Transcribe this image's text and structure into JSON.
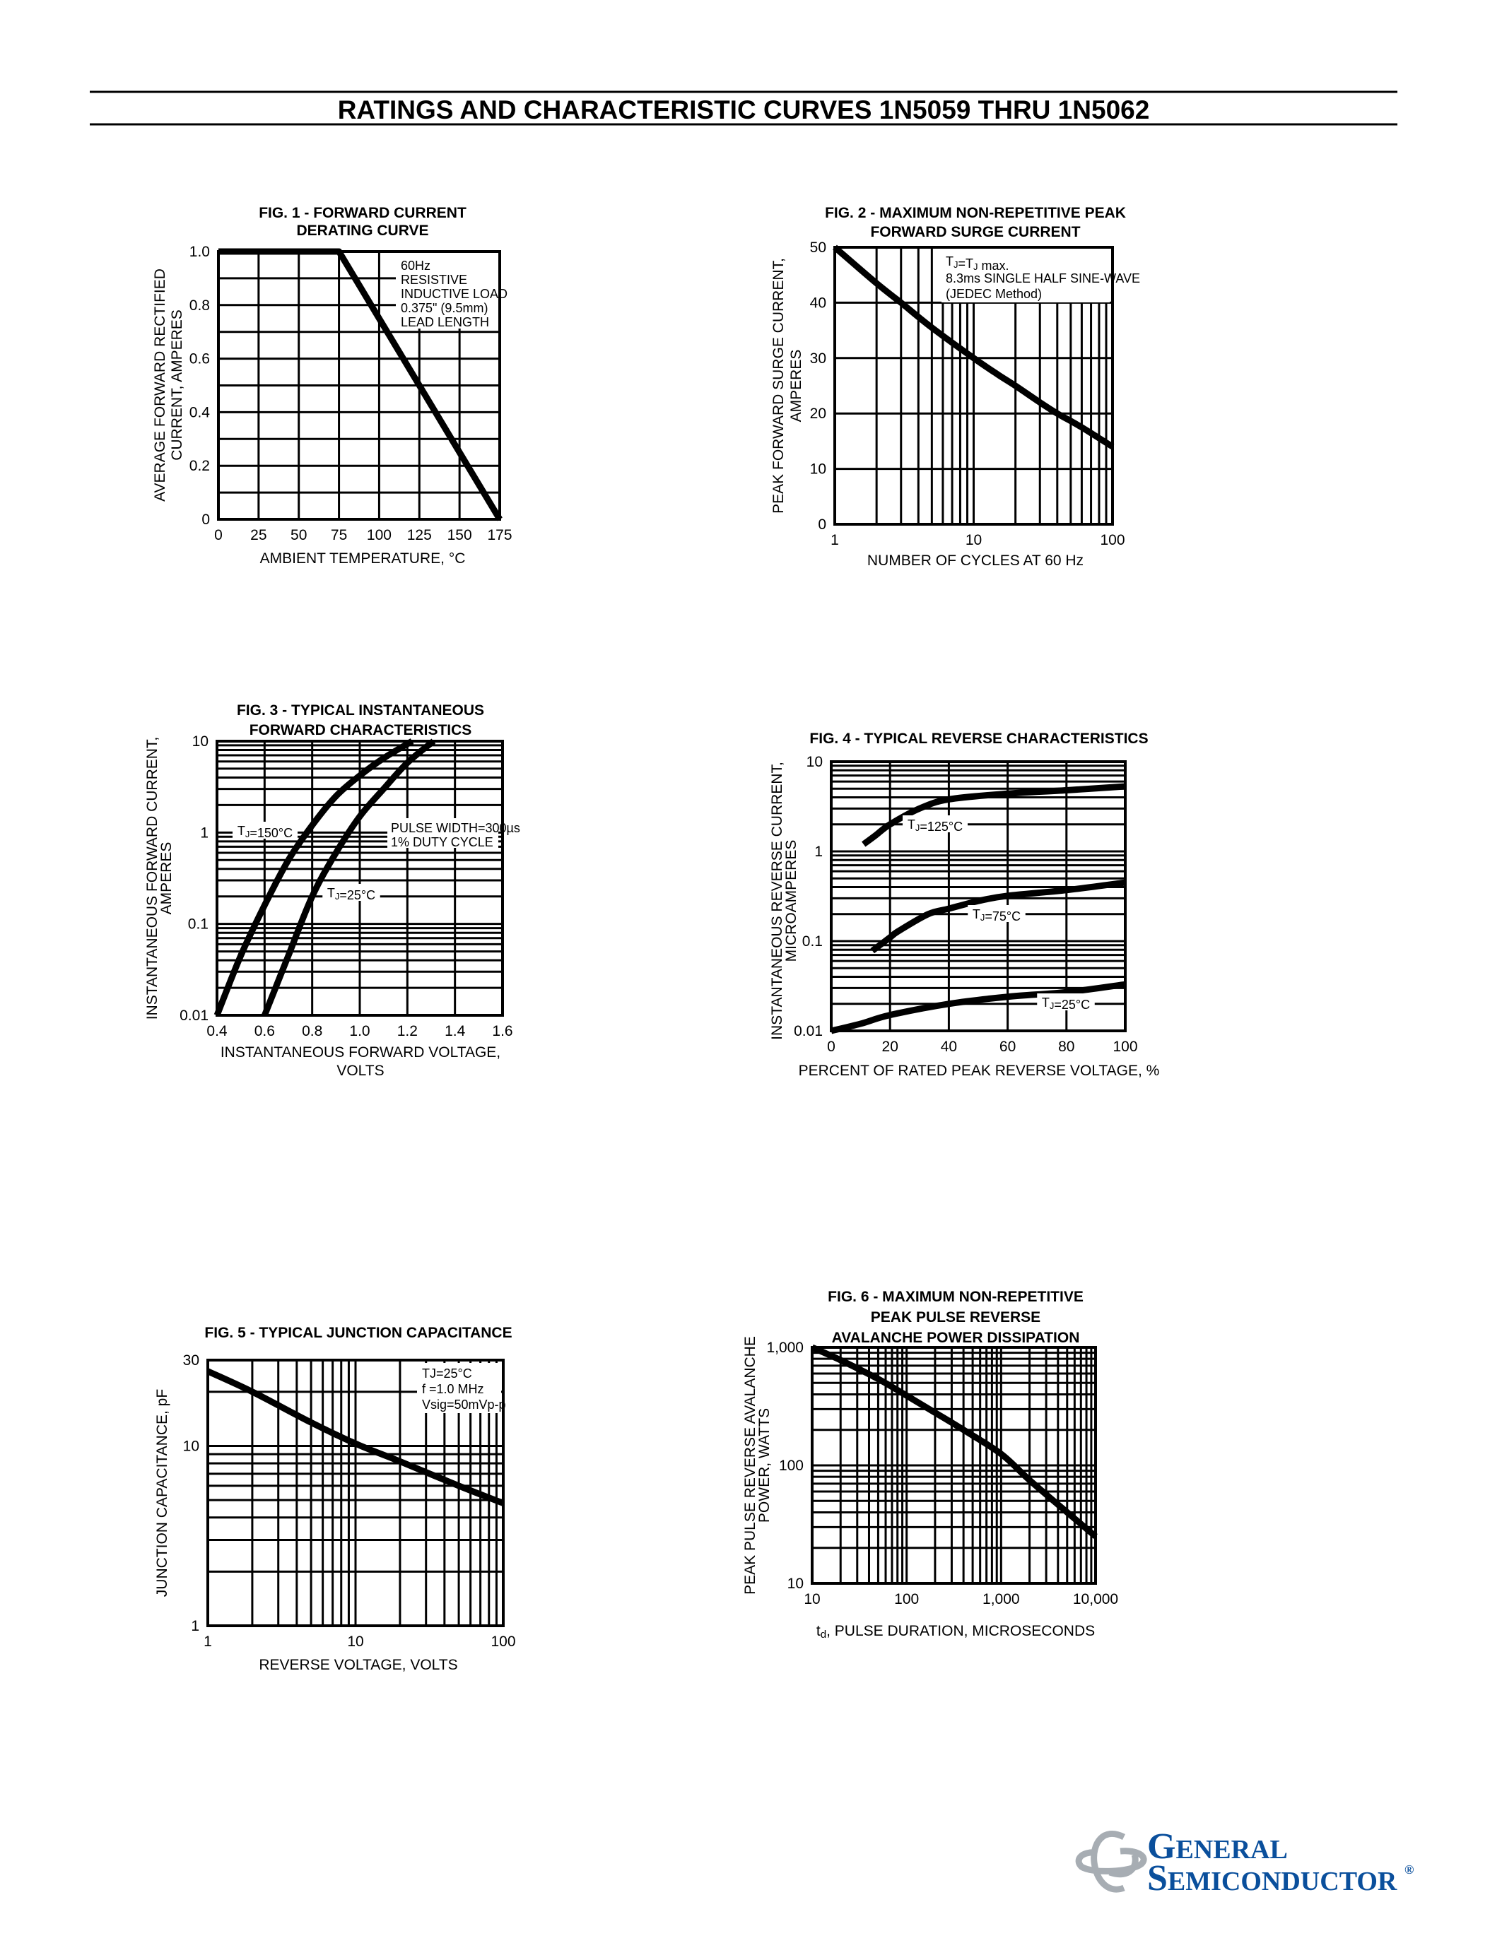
{
  "header": {
    "title": "RATINGS AND CHARACTERISTIC CURVES 1N5059 THRU 1N5062"
  },
  "logo": {
    "line1": "GENERAL",
    "line2": "SEMICONDUCTOR",
    "mark": "®",
    "emblem": "gs-emblem-icon",
    "color": "#0a4f9c",
    "emblem_color": "#a7adb3"
  },
  "chart_data": [
    {
      "type": "line",
      "title": [
        "FIG. 1 -  FORWARD CURRENT",
        "DERATING CURVE"
      ],
      "xlabel": [
        "AMBIENT TEMPERATURE, °C"
      ],
      "ylabel": [
        "AVERAGE FORWARD RECTIFIED",
        "CURRENT, AMPERES"
      ],
      "xscale": "linear",
      "yscale": "linear",
      "xlim": [
        0,
        175
      ],
      "ylim": [
        0,
        1.0
      ],
      "xticks": [
        0,
        25,
        50,
        75,
        100,
        125,
        150,
        175
      ],
      "xtick_labels": [
        "0",
        "25",
        "50",
        "75",
        "100",
        "125",
        "150",
        "175"
      ],
      "yticks": [
        0,
        0.2,
        0.4,
        0.6,
        0.8,
        1.0
      ],
      "ytick_labels": [
        "0",
        "0.2",
        "0.4",
        "0.6",
        "0.8",
        "1.0"
      ],
      "grid": true,
      "annotation": [
        "60Hz",
        "RESISTIVE",
        "INDUCTIVE LOAD",
        "0.375\" (9.5mm)",
        "LEAD LENGTH"
      ],
      "series": [
        {
          "points": [
            [
              0,
              1.0
            ],
            [
              75,
              1.0
            ],
            [
              175,
              0
            ]
          ]
        }
      ]
    },
    {
      "type": "line",
      "title": [
        "FIG. 2 - MAXIMUM NON-REPETITIVE PEAK",
        "FORWARD SURGE CURRENT"
      ],
      "xlabel": [
        "NUMBER OF CYCLES AT 60 Hz"
      ],
      "ylabel": [
        "PEAK FORWARD SURGE CURRENT,",
        "AMPERES"
      ],
      "xscale": "log",
      "yscale": "linear",
      "xlim": [
        1,
        100
      ],
      "ylim": [
        0,
        50
      ],
      "xticks": [
        1,
        10,
        100
      ],
      "xtick_labels": [
        "1",
        "10",
        "100"
      ],
      "yticks": [
        0,
        10,
        20,
        30,
        40,
        50
      ],
      "ytick_labels": [
        "0",
        "10",
        "20",
        "30",
        "40",
        "50"
      ],
      "grid": true,
      "annotation": [
        "TJ=TJ max.",
        "8.3ms SINGLE HALF SINE-WAVE",
        "(JEDEC Method)"
      ],
      "series": [
        {
          "points": [
            [
              1,
              50
            ],
            [
              2,
              43.5
            ],
            [
              3,
              40
            ],
            [
              5,
              35.5
            ],
            [
              10,
              30
            ],
            [
              15,
              27
            ],
            [
              20,
              25
            ],
            [
              30,
              22
            ],
            [
              40,
              20
            ],
            [
              60,
              17.5
            ],
            [
              100,
              14
            ]
          ]
        }
      ]
    },
    {
      "type": "line",
      "title": [
        "FIG. 3 - TYPICAL INSTANTANEOUS",
        "FORWARD CHARACTERISTICS"
      ],
      "xlabel": [
        "INSTANTANEOUS FORWARD VOLTAGE,",
        "VOLTS"
      ],
      "ylabel": [
        "INSTANTANEOUS FORWARD CURRENT,",
        "AMPERES"
      ],
      "xscale": "linear",
      "yscale": "log",
      "xlim": [
        0.4,
        1.6
      ],
      "ylim": [
        0.01,
        10
      ],
      "xticks": [
        0.4,
        0.6,
        0.8,
        1.0,
        1.2,
        1.4,
        1.6
      ],
      "xtick_labels": [
        "0.4",
        "0.6",
        "0.8",
        "1.0",
        "1.2",
        "1.4",
        "1.6"
      ],
      "yticks": [
        0.01,
        0.1,
        1,
        10
      ],
      "ytick_labels": [
        "0.01",
        "0.1",
        "1",
        "10"
      ],
      "grid": true,
      "annotation": [
        "PULSE WIDTH=300µs",
        "1% DUTY CYCLE"
      ],
      "series": [
        {
          "name": "TJ=150°C",
          "points": [
            [
              0.4,
              0.01
            ],
            [
              0.5,
              0.045
            ],
            [
              0.6,
              0.16
            ],
            [
              0.7,
              0.5
            ],
            [
              0.8,
              1.2
            ],
            [
              0.9,
              2.5
            ],
            [
              1.0,
              4.2
            ],
            [
              1.1,
              6.5
            ],
            [
              1.22,
              10
            ]
          ]
        },
        {
          "name": "TJ=25°C",
          "points": [
            [
              0.6,
              0.01
            ],
            [
              0.7,
              0.045
            ],
            [
              0.8,
              0.2
            ],
            [
              0.9,
              0.6
            ],
            [
              1.0,
              1.5
            ],
            [
              1.1,
              3.0
            ],
            [
              1.2,
              5.8
            ],
            [
              1.31,
              10
            ]
          ]
        }
      ]
    },
    {
      "type": "line",
      "title": [
        "FIG. 4 - TYPICAL REVERSE  CHARACTERISTICS"
      ],
      "xlabel": [
        "PERCENT OF RATED PEAK REVERSE VOLTAGE, %"
      ],
      "ylabel": [
        "INSTANTANEOUS REVERSE CURRENT,",
        "MICROAMPERES"
      ],
      "xscale": "linear",
      "yscale": "log",
      "xlim": [
        0,
        100
      ],
      "ylim": [
        0.01,
        10
      ],
      "xticks": [
        0,
        20,
        40,
        60,
        80,
        100
      ],
      "xtick_labels": [
        "0",
        "20",
        "40",
        "60",
        "80",
        "100"
      ],
      "yticks": [
        0.01,
        0.1,
        1,
        10
      ],
      "ytick_labels": [
        "0.01",
        "0.1",
        "1",
        "10"
      ],
      "grid": true,
      "series": [
        {
          "name": "TJ=125°C",
          "points": [
            [
              11,
              1.2
            ],
            [
              15,
              1.5
            ],
            [
              20,
              2.0
            ],
            [
              30,
              3.0
            ],
            [
              40,
              3.8
            ],
            [
              60,
              4.4
            ],
            [
              80,
              4.8
            ],
            [
              100,
              5.3
            ]
          ]
        },
        {
          "name": "TJ=75°C",
          "points": [
            [
              14,
              0.078
            ],
            [
              20,
              0.11
            ],
            [
              23,
              0.13
            ],
            [
              33,
              0.2
            ],
            [
              40,
              0.23
            ],
            [
              50,
              0.28
            ],
            [
              60,
              0.32
            ],
            [
              80,
              0.37
            ],
            [
              100,
              0.45
            ]
          ]
        },
        {
          "name": "TJ=25°C",
          "points": [
            [
              0,
              0.01
            ],
            [
              10,
              0.012
            ],
            [
              20,
              0.015
            ],
            [
              40,
              0.02
            ],
            [
              60,
              0.024
            ],
            [
              80,
              0.027
            ],
            [
              100,
              0.033
            ]
          ]
        }
      ]
    },
    {
      "type": "line",
      "title": [
        "FIG. 5 - TYPICAL JUNCTION CAPACITANCE"
      ],
      "xlabel": [
        "REVERSE VOLTAGE, VOLTS"
      ],
      "ylabel": [
        "JUNCTION CAPACITANCE, pF"
      ],
      "xscale": "log",
      "yscale": "log",
      "xlim": [
        1,
        100
      ],
      "ylim": [
        1,
        30
      ],
      "xticks": [
        1,
        10,
        100
      ],
      "xtick_labels": [
        "1",
        "10",
        "100"
      ],
      "yticks": [
        1,
        10,
        30
      ],
      "ytick_labels": [
        "1",
        "10",
        "30"
      ],
      "grid": true,
      "annotation": [
        "TJ=25°C",
        "f =1.0 MHz",
        "Vsig=50mVp-p"
      ],
      "series": [
        {
          "points": [
            [
              1,
              26
            ],
            [
              2,
              20
            ],
            [
              5,
              13.5
            ],
            [
              10,
              10.3
            ],
            [
              20,
              8.2
            ],
            [
              50,
              6.0
            ],
            [
              100,
              4.8
            ]
          ]
        }
      ]
    },
    {
      "type": "line",
      "title": [
        "FIG. 6 - MAXIMUM NON-REPETITIVE",
        "PEAK PULSE REVERSE",
        "AVALANCHE POWER DISSIPATION"
      ],
      "xlabel": [
        "td, PULSE DURATION, MICROSECONDS"
      ],
      "ylabel": [
        "PEAK PULSE REVERSE AVALANCHE",
        "POWER, WATTS"
      ],
      "xscale": "log",
      "yscale": "log",
      "xlim": [
        10,
        10000
      ],
      "ylim": [
        10,
        1000
      ],
      "xticks": [
        10,
        100,
        1000,
        10000
      ],
      "xtick_labels": [
        "10",
        "100",
        "1,000",
        "10,000"
      ],
      "yticks": [
        10,
        100,
        1000
      ],
      "ytick_labels": [
        "10",
        "100",
        "1,000"
      ],
      "grid": true,
      "series": [
        {
          "points": [
            [
              10,
              1000
            ],
            [
              20,
              780
            ],
            [
              50,
              540
            ],
            [
              100,
              390
            ],
            [
              200,
              280
            ],
            [
              400,
              200
            ],
            [
              1000,
              125
            ],
            [
              2000,
              75
            ],
            [
              5000,
              40
            ],
            [
              10000,
              25
            ]
          ]
        }
      ]
    }
  ]
}
